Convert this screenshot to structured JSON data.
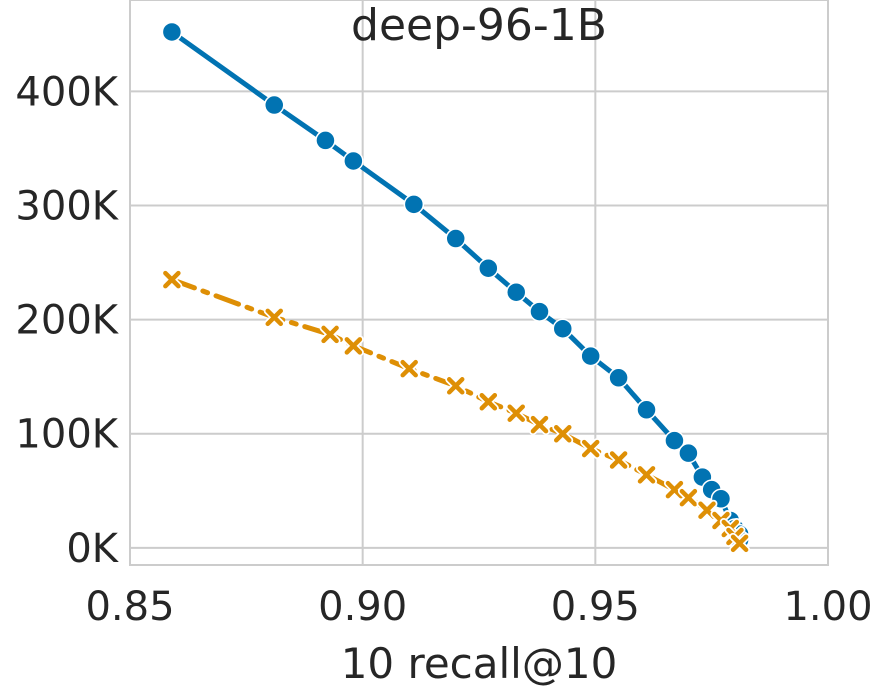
{
  "chart_data": {
    "type": "line",
    "title": "deep-96-1B",
    "xlabel": "10 recall@10",
    "ylabel": "",
    "xlim": [
      0.85,
      1.0
    ],
    "ylim": [
      -15000,
      480000
    ],
    "xticks": [
      0.85,
      0.9,
      0.95,
      1.0
    ],
    "xtick_labels": [
      "0.85",
      "0.90",
      "0.95",
      "1.00"
    ],
    "yticks": [
      0,
      100000,
      200000,
      300000,
      400000
    ],
    "ytick_labels": [
      "0K",
      "100K",
      "200K",
      "300K",
      "400K"
    ],
    "grid": true,
    "series": [
      {
        "color": "#0173b2",
        "marker": "circle",
        "linestyle": "solid",
        "x": [
          0.859,
          0.881,
          0.892,
          0.898,
          0.911,
          0.92,
          0.927,
          0.933,
          0.938,
          0.943,
          0.949,
          0.955,
          0.961,
          0.967,
          0.97,
          0.973,
          0.975,
          0.977,
          0.979,
          0.98,
          0.981,
          0.981
        ],
        "y": [
          452000,
          388000,
          357000,
          339000,
          301000,
          271000,
          245000,
          224000,
          207000,
          192000,
          168000,
          149000,
          121000,
          94000,
          83000,
          62000,
          51000,
          43000,
          24000,
          17000,
          12000,
          7000
        ]
      },
      {
        "color": "#de8f05",
        "marker": "x",
        "linestyle": "dashdot",
        "x": [
          0.859,
          0.881,
          0.893,
          0.898,
          0.91,
          0.92,
          0.927,
          0.933,
          0.938,
          0.943,
          0.949,
          0.955,
          0.961,
          0.967,
          0.97,
          0.974,
          0.977,
          0.979,
          0.98,
          0.981
        ],
        "y": [
          235000,
          202000,
          187000,
          177000,
          157000,
          142000,
          128000,
          118000,
          108000,
          100000,
          87000,
          77000,
          64000,
          51000,
          44000,
          33000,
          24000,
          17000,
          10000,
          4000
        ]
      }
    ]
  }
}
